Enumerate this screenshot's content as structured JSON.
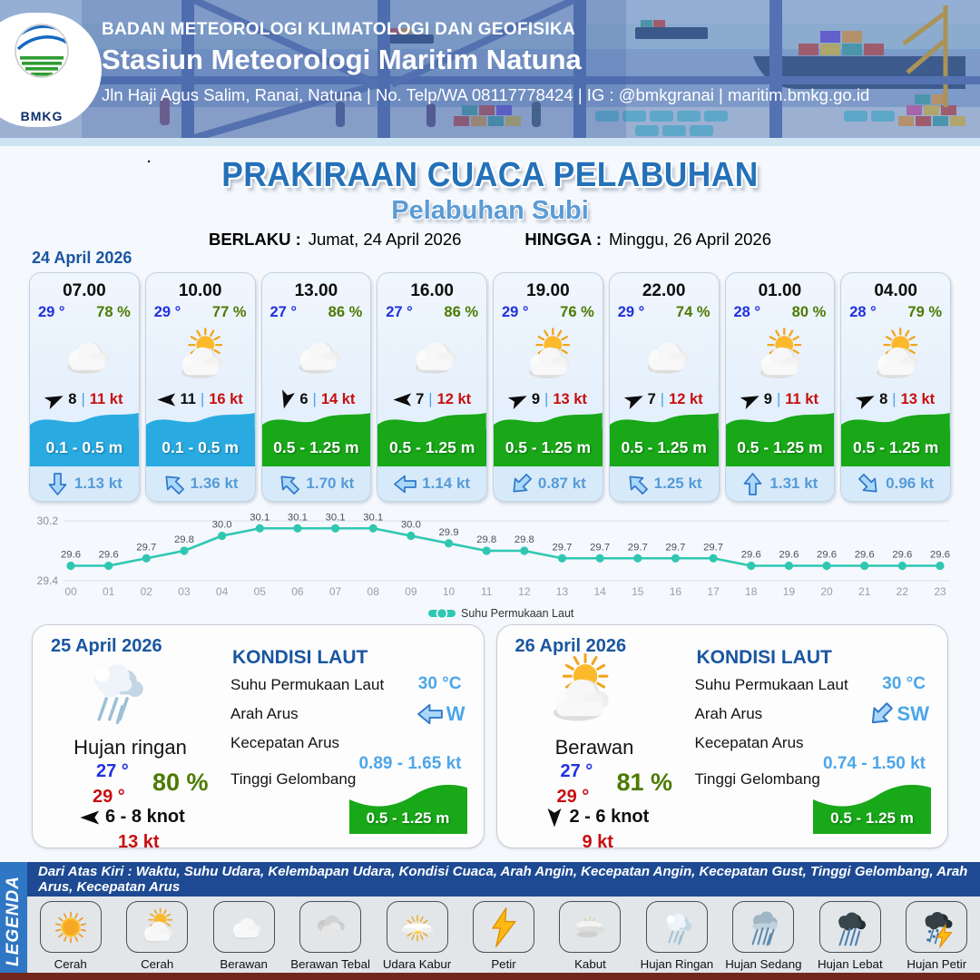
{
  "colors": {
    "heading_blue": "#1a56a0",
    "subtitle_blue": "#5b9bd5",
    "temp_blue": "#2130dd",
    "humidity_green": "#4c7a00",
    "gust_red": "#c80f0f",
    "wave_blue": "#29abe2",
    "wave_green": "#18a818",
    "current_blue": "#569bd8",
    "chart_teal": "#2fc7b2"
  },
  "header": {
    "logo_label": "BMKG",
    "agency": "BADAN METEOROLOGI KLIMATOLOGI DAN GEOFISIKA",
    "station": "Stasiun Meteorologi Maritim Natuna",
    "address": "Jln Haji Agus Salim, Ranai, Natuna  | No. Telp/WA 08117778424 | IG : @bmkgranai | maritim.bmkg.go.id"
  },
  "title": {
    "dot": ".",
    "main": "PRAKIRAAN CUACA PELABUHAN",
    "subtitle": "Pelabuhan Subi",
    "berlaku_label": "BERLAKU :",
    "berlaku_value": "Jumat, 24 April 2026",
    "hingga_label": "HINGGA :",
    "hingga_value": "Minggu, 26 April 2026"
  },
  "day1": {
    "date": "24 April 2026",
    "cards": [
      {
        "time": "07.00",
        "temp": "29 °",
        "humidity": "78 %",
        "icon": "berawan",
        "wind_deg": -25,
        "wind_speed": "8",
        "gust": "11 kt",
        "wave": "0.1 - 0.5 m",
        "wave_color": "#29abe2",
        "current_deg": 90,
        "current_speed": "1.13 kt"
      },
      {
        "time": "10.00",
        "temp": "29 °",
        "humidity": "77 %",
        "icon": "cerah-berawan",
        "wind_deg": 180,
        "wind_speed": "11",
        "gust": "16 kt",
        "wave": "0.1 - 0.5 m",
        "wave_color": "#29abe2",
        "current_deg": -135,
        "current_speed": "1.36 kt"
      },
      {
        "time": "13.00",
        "temp": "27 °",
        "humidity": "86 %",
        "icon": "berawan",
        "wind_deg": 105,
        "wind_speed": "6",
        "gust": "14 kt",
        "wave": "0.5 - 1.25 m",
        "wave_color": "#18a818",
        "current_deg": -135,
        "current_speed": "1.70 kt"
      },
      {
        "time": "16.00",
        "temp": "27 °",
        "humidity": "86 %",
        "icon": "berawan",
        "wind_deg": 180,
        "wind_speed": "7",
        "gust": "12 kt",
        "wave": "0.5 - 1.25 m",
        "wave_color": "#18a818",
        "current_deg": 180,
        "current_speed": "1.14 kt"
      },
      {
        "time": "19.00",
        "temp": "29 °",
        "humidity": "76 %",
        "icon": "cerah-berawan",
        "wind_deg": -25,
        "wind_speed": "9",
        "gust": "13 kt",
        "wave": "0.5 - 1.25 m",
        "wave_color": "#18a818",
        "current_deg": 135,
        "current_speed": "0.87 kt"
      },
      {
        "time": "22.00",
        "temp": "29 °",
        "humidity": "74 %",
        "icon": "berawan",
        "wind_deg": -25,
        "wind_speed": "7",
        "gust": "12 kt",
        "wave": "0.5 - 1.25 m",
        "wave_color": "#18a818",
        "current_deg": -135,
        "current_speed": "1.25 kt"
      },
      {
        "time": "01.00",
        "temp": "28 °",
        "humidity": "80 %",
        "icon": "cerah-berawan",
        "wind_deg": -25,
        "wind_speed": "9",
        "gust": "11 kt",
        "wave": "0.5 - 1.25 m",
        "wave_color": "#18a818",
        "current_deg": -90,
        "current_speed": "1.31 kt"
      },
      {
        "time": "04.00",
        "temp": "28 °",
        "humidity": "79 %",
        "icon": "cerah-berawan",
        "wind_deg": -25,
        "wind_speed": "8",
        "gust": "13 kt",
        "wave": "0.5 - 1.25 m",
        "wave_color": "#18a818",
        "current_deg": 45,
        "current_speed": "0.96 kt"
      }
    ]
  },
  "chart_data": {
    "type": "line",
    "series": "Suhu Permukaan Laut",
    "x": [
      "00",
      "01",
      "02",
      "03",
      "04",
      "05",
      "06",
      "07",
      "08",
      "09",
      "10",
      "11",
      "12",
      "13",
      "14",
      "15",
      "16",
      "17",
      "18",
      "19",
      "20",
      "21",
      "22",
      "23"
    ],
    "values": [
      29.6,
      29.6,
      29.7,
      29.8,
      30.0,
      30.1,
      30.1,
      30.1,
      30.1,
      30.0,
      29.9,
      29.8,
      29.8,
      29.7,
      29.7,
      29.7,
      29.7,
      29.7,
      29.6,
      29.6,
      29.6,
      29.6,
      29.6,
      29.6
    ],
    "ylim": [
      29.4,
      30.2
    ],
    "yticks": [
      29.4,
      30.2
    ],
    "grid": true,
    "legend_position": "bottom-center",
    "color": "#2fc7b2"
  },
  "daily": [
    {
      "date": "25 April 2026",
      "icon": "hujan-ringan",
      "condition": "Hujan ringan",
      "temp_min": "27 °",
      "temp_max": "29 °",
      "humidity": "80 %",
      "wind_deg": 180,
      "wind_range": "6 - 8 knot",
      "gust": "13 kt",
      "sea": {
        "title": "KONDISI LAUT",
        "sst_label": "Suhu Permukaan Laut",
        "sst": "30 °C",
        "current_dir_label": "Arah Arus",
        "current_dir": "W",
        "current_deg": 180,
        "current_speed_label": "Kecepatan Arus",
        "current_speed": "0.89 - 1.65 kt",
        "wave_label": "Tinggi Gelombang",
        "wave": "0.5 - 1.25 m"
      }
    },
    {
      "date": "26 April 2026",
      "icon": "cerah-berawan",
      "condition": "Berawan",
      "temp_min": "27 °",
      "temp_max": "29 °",
      "humidity": "81 %",
      "wind_deg": 90,
      "wind_range": "2 - 6 knot",
      "gust": "9 kt",
      "sea": {
        "title": "KONDISI LAUT",
        "sst_label": "Suhu Permukaan Laut",
        "sst": "30 °C",
        "current_dir_label": "Arah Arus",
        "current_dir": "SW",
        "current_deg": 135,
        "current_speed_label": "Kecepatan Arus",
        "current_speed": "0.74 - 1.50 kt",
        "wave_label": "Tinggi Gelombang",
        "wave": "0.5 - 1.25 m"
      }
    }
  ],
  "legend": {
    "vertical_label": "LEGENDA",
    "description": "Dari Atas Kiri : Waktu, Suhu Udara, Kelembapan Udara, Kondisi Cuaca, Arah Angin, Kecepatan Angin, Kecepatan Gust, Tinggi Gelombang, Arah Arus, Kecepatan Arus",
    "items": [
      {
        "icon": "cerah",
        "label": "Cerah"
      },
      {
        "icon": "cerah-berawan",
        "label": "Cerah Berawan"
      },
      {
        "icon": "berawan",
        "label": "Berawan"
      },
      {
        "icon": "berawan-tebal",
        "label": "Berawan Tebal"
      },
      {
        "icon": "udara-kabur",
        "label": "Udara Kabur"
      },
      {
        "icon": "petir",
        "label": "Petir"
      },
      {
        "icon": "kabut",
        "label": "Kabut"
      },
      {
        "icon": "hujan-ringan",
        "label": "Hujan Ringan"
      },
      {
        "icon": "hujan-sedang",
        "label": "Hujan Sedang"
      },
      {
        "icon": "hujan-lebat",
        "label": "Hujan Lebat"
      },
      {
        "icon": "hujan-petir",
        "label": "Hujan Petir"
      }
    ]
  }
}
